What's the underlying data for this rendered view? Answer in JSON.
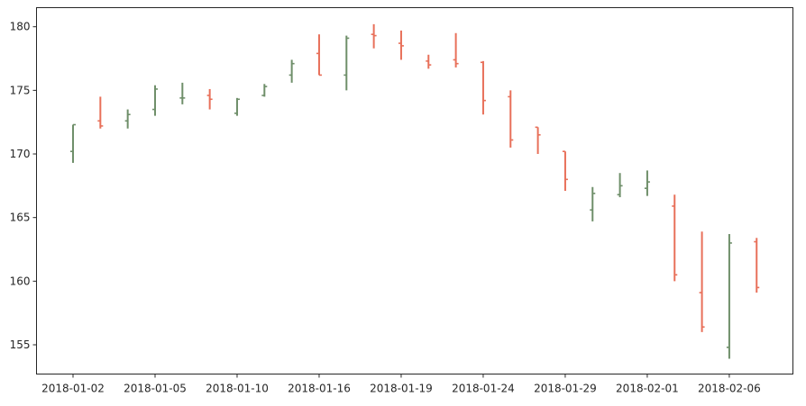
{
  "chart_data": {
    "type": "ohlc",
    "title": "",
    "xlabel": "",
    "ylabel": "",
    "ylim": [
      152.7,
      181.5
    ],
    "yticks": [
      155,
      160,
      165,
      170,
      175,
      180
    ],
    "xtick_labels": [
      {
        "index": 0,
        "label": "2018-01-02"
      },
      {
        "index": 3,
        "label": "2018-01-05"
      },
      {
        "index": 6,
        "label": "2018-01-10"
      },
      {
        "index": 9,
        "label": "2018-01-16"
      },
      {
        "index": 12,
        "label": "2018-01-19"
      },
      {
        "index": 15,
        "label": "2018-01-24"
      },
      {
        "index": 18,
        "label": "2018-01-29"
      },
      {
        "index": 21,
        "label": "2018-02-01"
      },
      {
        "index": 24,
        "label": "2018-02-06"
      }
    ],
    "grid": false,
    "colors": {
      "up": "#6f8f6a",
      "down": "#e8705a"
    },
    "bars": [
      {
        "open": 170.2,
        "high": 172.3,
        "low": 169.3,
        "close": 172.3
      },
      {
        "open": 172.6,
        "high": 174.5,
        "low": 172.0,
        "close": 172.2
      },
      {
        "open": 172.6,
        "high": 173.5,
        "low": 172.0,
        "close": 173.1
      },
      {
        "open": 173.5,
        "high": 175.4,
        "low": 173.0,
        "close": 175.1
      },
      {
        "open": 174.4,
        "high": 175.6,
        "low": 173.9,
        "close": 174.4
      },
      {
        "open": 174.6,
        "high": 175.1,
        "low": 173.5,
        "close": 174.3
      },
      {
        "open": 173.2,
        "high": 174.4,
        "low": 173.0,
        "close": 174.3
      },
      {
        "open": 174.6,
        "high": 175.5,
        "low": 174.5,
        "close": 175.3
      },
      {
        "open": 176.2,
        "high": 177.4,
        "low": 175.6,
        "close": 177.1
      },
      {
        "open": 177.9,
        "high": 179.4,
        "low": 176.2,
        "close": 176.2
      },
      {
        "open": 176.2,
        "high": 179.3,
        "low": 175.0,
        "close": 179.1
      },
      {
        "open": 179.4,
        "high": 180.2,
        "low": 178.3,
        "close": 179.3
      },
      {
        "open": 178.7,
        "high": 179.7,
        "low": 177.4,
        "close": 178.5
      },
      {
        "open": 177.3,
        "high": 177.8,
        "low": 176.7,
        "close": 177.0
      },
      {
        "open": 177.4,
        "high": 179.5,
        "low": 176.8,
        "close": 177.1
      },
      {
        "open": 177.2,
        "high": 177.3,
        "low": 173.1,
        "close": 174.2
      },
      {
        "open": 174.5,
        "high": 175.0,
        "low": 170.5,
        "close": 171.1
      },
      {
        "open": 172.1,
        "high": 172.1,
        "low": 170.0,
        "close": 171.5
      },
      {
        "open": 170.2,
        "high": 170.2,
        "low": 167.1,
        "close": 168.0
      },
      {
        "open": 165.6,
        "high": 167.4,
        "low": 164.7,
        "close": 166.9
      },
      {
        "open": 166.8,
        "high": 168.5,
        "low": 166.6,
        "close": 167.5
      },
      {
        "open": 167.3,
        "high": 168.7,
        "low": 166.7,
        "close": 167.8
      },
      {
        "open": 165.9,
        "high": 166.8,
        "low": 160.0,
        "close": 160.5
      },
      {
        "open": 159.1,
        "high": 163.9,
        "low": 156.0,
        "close": 156.4
      },
      {
        "open": 154.8,
        "high": 163.7,
        "low": 153.9,
        "close": 163.0
      },
      {
        "open": 163.1,
        "high": 163.4,
        "low": 159.1,
        "close": 159.5
      }
    ]
  }
}
